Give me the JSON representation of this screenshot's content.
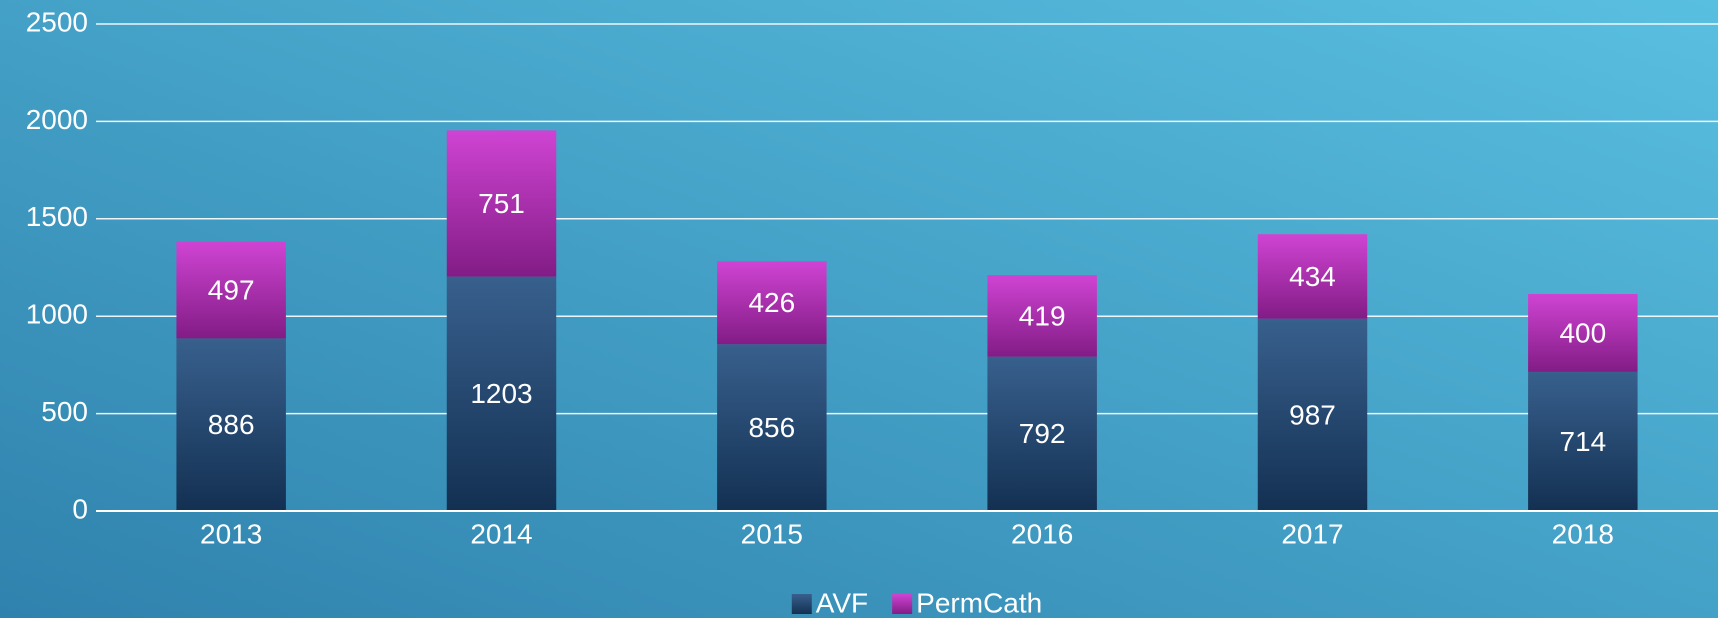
{
  "chart_data": {
    "type": "stacked_bar",
    "categories": [
      "2013",
      "2014",
      "2015",
      "2016",
      "2017",
      "2018"
    ],
    "series": [
      {
        "name": "AVF",
        "color": "#1d4a7e",
        "values": [
          886,
          1203,
          856,
          792,
          987,
          714
        ]
      },
      {
        "name": "PermCath",
        "color": "#c82bcd",
        "values": [
          497,
          751,
          426,
          419,
          434,
          400
        ]
      }
    ],
    "ylim": [
      0,
      2500
    ],
    "yticks": [
      0,
      500,
      1000,
      1500,
      2000,
      2500
    ],
    "grid": true,
    "legend": "bottom"
  }
}
